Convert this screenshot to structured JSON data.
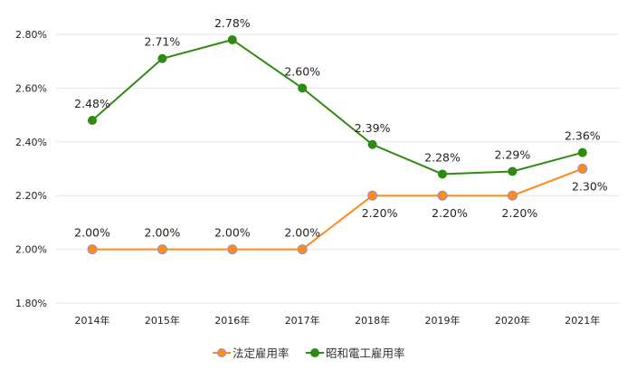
{
  "chart_data": {
    "type": "line",
    "title": "",
    "xlabel": "",
    "ylabel": "",
    "categories": [
      "2014年",
      "2015年",
      "2016年",
      "2017年",
      "2018年",
      "2019年",
      "2020年",
      "2021年"
    ],
    "ylim": [
      1.8,
      2.8
    ],
    "yticks": [
      1.8,
      2.0,
      2.2,
      2.4,
      2.6,
      2.8
    ],
    "ytick_labels": [
      "1.80%",
      "2.00%",
      "2.20%",
      "2.40%",
      "2.60%",
      "2.80%"
    ],
    "grid": true,
    "legend_position": "bottom",
    "series": [
      {
        "name": "法定雇用率",
        "color": "#ff8c1a",
        "marker_edge": "#8f8fd0",
        "values": [
          2.0,
          2.0,
          2.0,
          2.0,
          2.2,
          2.2,
          2.2,
          2.3
        ],
        "labels": [
          "2.00%",
          "2.00%",
          "2.00%",
          "2.00%",
          "2.20%",
          "2.20%",
          "2.20%",
          "2.30%"
        ],
        "label_side": [
          "above",
          "above",
          "above",
          "above",
          "below",
          "below",
          "below",
          "below"
        ]
      },
      {
        "name": "昭和電工雇用率",
        "color": "#2e8b12",
        "marker_edge": "#2e8b12",
        "values": [
          2.48,
          2.71,
          2.78,
          2.6,
          2.39,
          2.28,
          2.29,
          2.36
        ],
        "labels": [
          "2.48%",
          "2.71%",
          "2.78%",
          "2.60%",
          "2.39%",
          "2.28%",
          "2.29%",
          "2.36%"
        ],
        "label_side": [
          "above",
          "above",
          "above",
          "above",
          "above",
          "above",
          "above",
          "above"
        ]
      }
    ]
  }
}
